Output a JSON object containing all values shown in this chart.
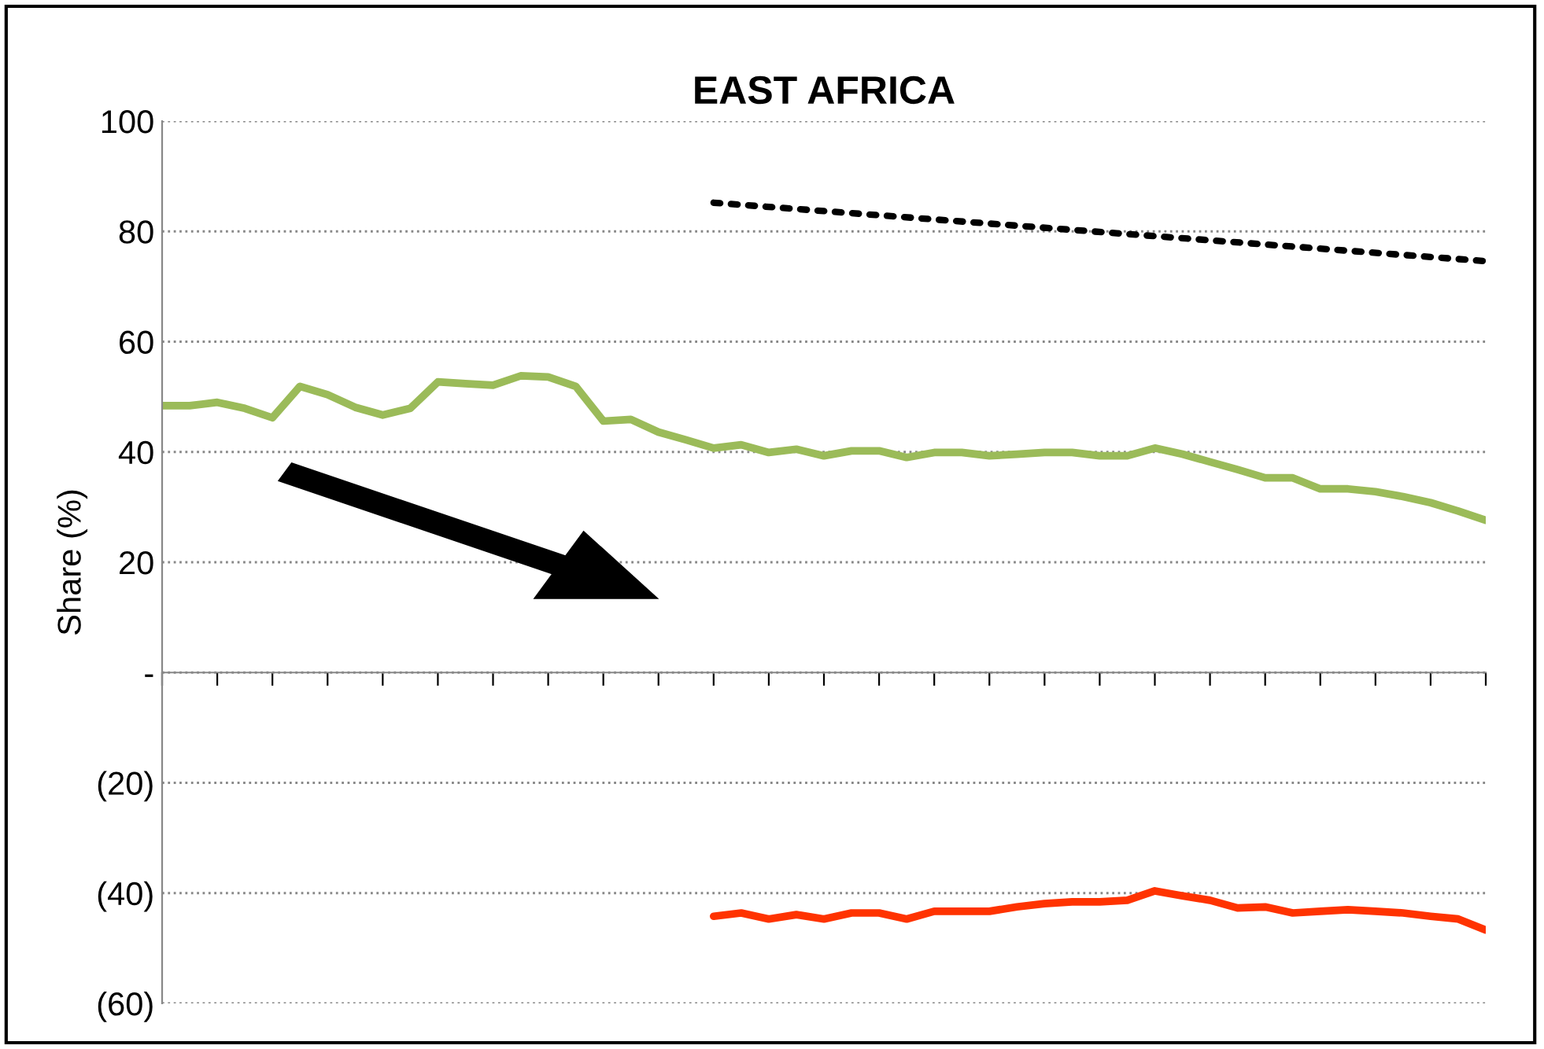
{
  "chart_data": {
    "type": "line",
    "title": "EAST AFRICA",
    "ylabel": "Share (%)",
    "categories": [
      null,
      null,
      null,
      null,
      null,
      null,
      null,
      null,
      null,
      null,
      null,
      null,
      null,
      null,
      null,
      null,
      null,
      null,
      null,
      null,
      null,
      null,
      null,
      null,
      null,
      null,
      null,
      null,
      null,
      null,
      null,
      null,
      null,
      null,
      null,
      null,
      null,
      null,
      null,
      null,
      null,
      null,
      null,
      null,
      null,
      null,
      null,
      null,
      null
    ],
    "series": [
      {
        "color": "#9bbb59",
        "line_style": "solid",
        "values": [
          48.4,
          48.4,
          49,
          47.9,
          46.2,
          51.9,
          50.4,
          48.1,
          46.7,
          47.9,
          52.7,
          52.4,
          52.1,
          53.8,
          53.6,
          51.9,
          45.6,
          45.9,
          43.6,
          42.2,
          40.7,
          41.3,
          39.9,
          40.5,
          39.3,
          40.2,
          40.2,
          39.0,
          39.9,
          39.9,
          39.3,
          39.6,
          39.9,
          39.9,
          39.3,
          39.3,
          40.7,
          39.6,
          38.2,
          36.8,
          35.3,
          35.3,
          33.3,
          33.3,
          32.8,
          31.9,
          30.8,
          29.3,
          27.6
        ]
      },
      {
        "color": "#ff3300",
        "line_style": "solid",
        "values": [
          null,
          null,
          null,
          null,
          null,
          null,
          null,
          null,
          null,
          null,
          null,
          null,
          null,
          null,
          null,
          null,
          null,
          null,
          null,
          null,
          -44.2,
          -43.6,
          -44.7,
          -43.9,
          -44.7,
          -43.6,
          -43.6,
          -44.7,
          -43.3,
          -43.3,
          -43.3,
          -42.5,
          -41.9,
          -41.6,
          -41.6,
          -41.3,
          -39.6,
          -40.5,
          -41.3,
          -42.7,
          -42.5,
          -43.6,
          -43.3,
          -43.0,
          -43.3,
          -43.6,
          -44.2,
          -44.7,
          -46.7
        ]
      },
      {
        "color": "#000000",
        "line_style": "dotted",
        "values": [
          null,
          null,
          null,
          null,
          null,
          null,
          null,
          null,
          null,
          null,
          null,
          null,
          null,
          null,
          null,
          null,
          null,
          null,
          null,
          null,
          85.2,
          null,
          null,
          null,
          null,
          null,
          null,
          null,
          null,
          null,
          null,
          null,
          null,
          null,
          null,
          null,
          null,
          null,
          null,
          null,
          null,
          null,
          null,
          null,
          null,
          null,
          null,
          null,
          74.6
        ]
      }
    ],
    "ylim": [
      -60,
      100
    ],
    "yticks": [
      {
        "value": -60,
        "label": "(60)"
      },
      {
        "value": -40,
        "label": "(40)"
      },
      {
        "value": -20,
        "label": "(20)"
      },
      {
        "value": 0,
        "label": "-"
      },
      20,
      40,
      60,
      80,
      100
    ],
    "grid": "y",
    "legend": false,
    "marker": "none",
    "tick_labels": "y"
  }
}
